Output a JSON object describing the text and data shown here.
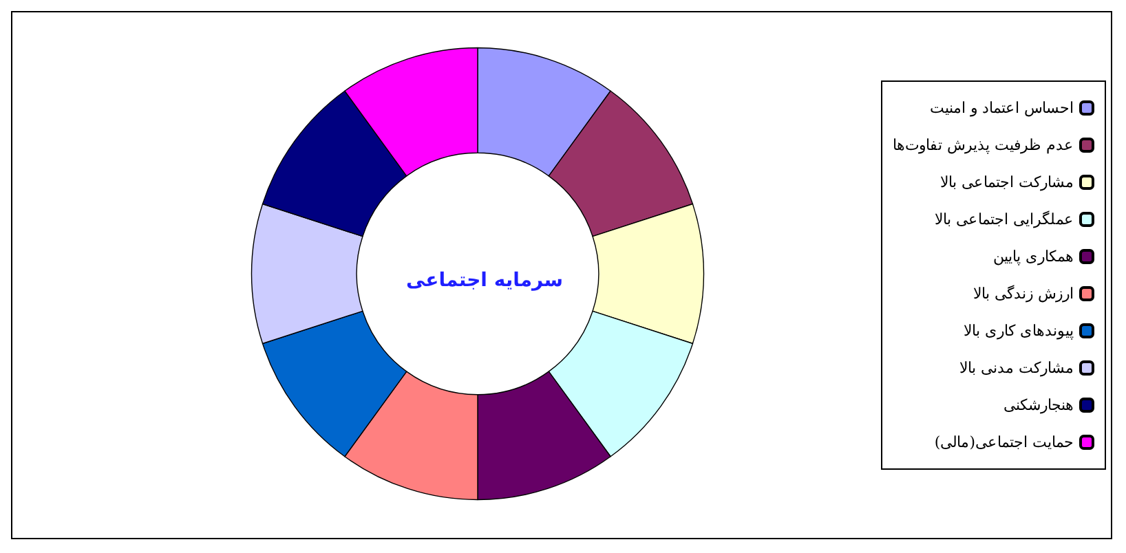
{
  "chart_data": {
    "type": "donut",
    "title": "سرمایه اجتماعی",
    "legend": "right",
    "categories": [
      "احساس اعتماد و امنیت",
      "عدم ظرفیت پذیرش تفاوت‌ها",
      "مشارکت اجتماعی بالا",
      "عملگرایی اجتماعی بالا",
      "همکاری پایین",
      "ارزش زندگی بالا",
      "پیوندهای کاری بالا",
      "مشارکت مدنی بالا",
      "هنجارشکنی",
      "حمایت اجتماعی(مالی)"
    ],
    "values": [
      10,
      10,
      10,
      10,
      10,
      10,
      10,
      10,
      10,
      10
    ],
    "colors": [
      "#9999ff",
      "#993366",
      "#ffffcc",
      "#ccffff",
      "#660066",
      "#ff8080",
      "#0066cc",
      "#ccccff",
      "#000080",
      "#ff00ff"
    ]
  }
}
